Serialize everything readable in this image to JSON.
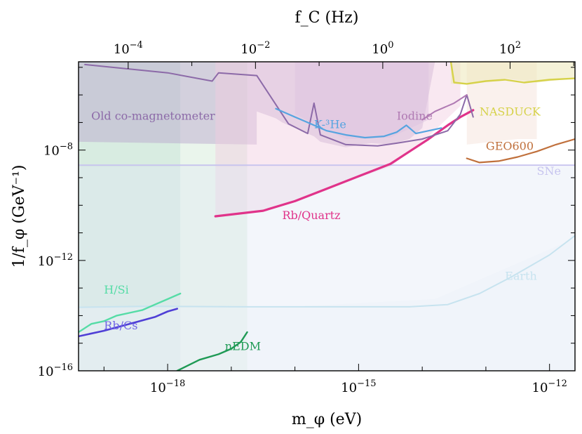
{
  "chart_data": {
    "type": "line",
    "title": "",
    "xlabel": "m_φ (eV)",
    "ylabel": "1/f_φ (GeV⁻¹)",
    "top_xlabel": "f_C (Hz)",
    "x_scale": "log10",
    "y_scale": "log10",
    "xlim_log10": [
      -19.4,
      -11.6
    ],
    "ylim_log10": [
      -16,
      -4.8
    ],
    "x_ticks": [
      {
        "value": -18,
        "label_base": "10",
        "label_exp": "−18"
      },
      {
        "value": -15,
        "label_base": "10",
        "label_exp": "−15"
      },
      {
        "value": -12,
        "label_base": "10",
        "label_exp": "−12"
      }
    ],
    "y_ticks": [
      {
        "value": -8,
        "label_base": "10",
        "label_exp": "−8"
      },
      {
        "value": -12,
        "label_base": "10",
        "label_exp": "−12"
      },
      {
        "value": -16,
        "label_base": "10",
        "label_exp": "−16"
      }
    ],
    "top_ticks": [
      {
        "value": -4,
        "label_base": "10",
        "label_exp": "−4"
      },
      {
        "value": -2,
        "label_base": "10",
        "label_exp": "−2"
      },
      {
        "value": 0,
        "label_base": "10",
        "label_exp": "0"
      },
      {
        "value": 2,
        "label_base": "10",
        "label_exp": "2"
      }
    ],
    "top_axis_offset_log10": 14.62,
    "regions": [
      {
        "name": "H/Si region",
        "color": "#b8dcc8",
        "opacity": 0.55,
        "x": [
          -19.4,
          -19.4,
          -17.8,
          -17.8
        ],
        "y": [
          -16,
          -4.8,
          -4.8,
          -16
        ]
      },
      {
        "name": "nEDM region",
        "color": "#d8ecdc",
        "opacity": 0.55,
        "x": [
          -17.8,
          -17.8,
          -16.75,
          -16.75
        ],
        "y": [
          -16,
          -4.8,
          -4.8,
          -16
        ]
      },
      {
        "name": "Old co-magnetometer region",
        "color": "#b9a3cc",
        "opacity": 0.45,
        "x": [
          -19.4,
          -19.4,
          -16.6,
          -16.6,
          -16.3,
          -16.2,
          -15.7,
          -15.6,
          -15.4,
          -15.2,
          -14.8,
          -14.5,
          -14.2,
          -14.0,
          -13.8
        ],
        "y": [
          -4.8,
          -7.7,
          -7.8,
          -6.6,
          -6.85,
          -7.0,
          -7.5,
          -7.7,
          -7.8,
          -7.9,
          -7.75,
          -7.8,
          -7.6,
          -7.2,
          -4.8
        ]
      },
      {
        "name": "K-3He region",
        "color": "#cbb8dd",
        "opacity": 0.45,
        "x": [
          -16.0,
          -16.0,
          -15.2,
          -14.5,
          -13.9,
          -13.9
        ],
        "y": [
          -4.8,
          -6.7,
          -7.6,
          -7.55,
          -6.9,
          -4.8
        ]
      },
      {
        "name": "Rb/Quartz region",
        "color": "#f1cde1",
        "opacity": 0.45,
        "x": [
          -17.25,
          -17.25,
          -16.5,
          -15.5,
          -14.5,
          -13.9,
          -13.4,
          -13.4
        ],
        "y": [
          -4.8,
          -10.4,
          -10.2,
          -9.4,
          -8.6,
          -7.5,
          -6.4,
          -4.8
        ]
      },
      {
        "name": "GEO600 region",
        "color": "#f4dfd7",
        "opacity": 0.45,
        "x": [
          -13.3,
          -13.3,
          -12.5,
          -12.2,
          -12.2
        ],
        "y": [
          -4.8,
          -7.8,
          -7.6,
          -7.6,
          -4.8
        ]
      },
      {
        "name": "NASDUCK region",
        "color": "#ece8b8",
        "opacity": 0.55,
        "x": [
          -13.55,
          -13.55,
          -13.3,
          -12.7,
          -12.2,
          -11.6,
          -11.6
        ],
        "y": [
          -4.8,
          -5.6,
          -5.6,
          -5.4,
          -5.55,
          -5.4,
          -4.8
        ]
      },
      {
        "name": "SNe region",
        "color": "#e2e8f6",
        "opacity": 0.4,
        "x": [
          -19.4,
          -19.4,
          -11.6,
          -11.6
        ],
        "y": [
          -16,
          -8.6,
          -8.6,
          -16
        ]
      },
      {
        "name": "Earth region",
        "color": "#eef2f8",
        "opacity": 0.45,
        "x": [
          -19.4,
          -19.4,
          -16.2,
          -13.8,
          -11.6,
          -11.6
        ],
        "y": [
          -16,
          -13.7,
          -13.7,
          -13.4,
          -11.2,
          -16
        ]
      }
    ],
    "series": [
      {
        "name": "SNe",
        "color": "#c7c4ef",
        "width": 2,
        "x": [
          -19.4,
          -11.6
        ],
        "y": [
          -8.55,
          -8.55
        ]
      },
      {
        "name": "Earth",
        "color": "#c7e3ef",
        "width": 2,
        "x": [
          -19.4,
          -18.3,
          -16.8,
          -15.2,
          -14.2,
          -13.6,
          -13.1,
          -12.6,
          -12.0,
          -11.6
        ],
        "y": [
          -13.7,
          -13.66,
          -13.68,
          -13.68,
          -13.68,
          -13.6,
          -13.2,
          -12.6,
          -11.8,
          -11.1
        ]
      },
      {
        "name": "H/Si",
        "color": "#55dca6",
        "width": 2.4,
        "x": [
          -19.4,
          -19.2,
          -19.0,
          -18.8,
          -18.6,
          -18.4,
          -18.2,
          -18.0,
          -17.8
        ],
        "y": [
          -14.6,
          -14.3,
          -14.2,
          -14.0,
          -13.9,
          -13.8,
          -13.6,
          -13.4,
          -13.2
        ]
      },
      {
        "name": "Rb/Cs",
        "color": "#4f3fd6",
        "width": 2.6,
        "x": [
          -19.4,
          -19.0,
          -18.6,
          -18.2,
          -18.0,
          -17.85
        ],
        "y": [
          -14.75,
          -14.55,
          -14.3,
          -14.05,
          -13.85,
          -13.75
        ]
      },
      {
        "name": "nEDM",
        "color": "#1f9a55",
        "width": 2.4,
        "x": [
          -17.85,
          -17.5,
          -17.2,
          -17.0,
          -16.85,
          -16.75
        ],
        "y": [
          -16.0,
          -15.6,
          -15.4,
          -15.2,
          -14.95,
          -14.6
        ]
      },
      {
        "name": "Rb/Quartz",
        "color": "#e0338a",
        "width": 3.2,
        "x": [
          -17.25,
          -16.5,
          -16.0,
          -15.5,
          -15.0,
          -14.5,
          -14.2,
          -13.9,
          -13.6,
          -13.4,
          -13.2
        ],
        "y": [
          -10.4,
          -10.2,
          -9.85,
          -9.4,
          -8.95,
          -8.5,
          -8.05,
          -7.6,
          -7.1,
          -6.8,
          -6.55
        ]
      },
      {
        "name": "Old co-magnetometer",
        "color": "#8c6aa8",
        "width": 2,
        "x": [
          -19.3,
          -18.0,
          -17.3,
          -17.2,
          -16.6,
          -16.1,
          -15.8,
          -15.7,
          -15.6,
          -15.2,
          -14.7,
          -14.4,
          -14.0,
          -13.6,
          -13.4,
          -13.3,
          -13.2
        ],
        "y": [
          -4.9,
          -5.2,
          -5.5,
          -5.2,
          -5.3,
          -7.05,
          -7.4,
          -6.3,
          -7.45,
          -7.8,
          -7.85,
          -7.75,
          -7.6,
          -7.3,
          -6.7,
          -6.0,
          -6.8
        ]
      },
      {
        "name": "K-3He",
        "color": "#56a4e0",
        "width": 2.2,
        "x": [
          -16.3,
          -16.0,
          -15.8,
          -15.5,
          -15.2,
          -14.9,
          -14.6,
          -14.4,
          -14.25,
          -14.1,
          -13.9,
          -13.7
        ],
        "y": [
          -6.5,
          -6.8,
          -7.0,
          -7.3,
          -7.45,
          -7.55,
          -7.5,
          -7.35,
          -7.1,
          -7.4,
          -7.3,
          -7.2
        ]
      },
      {
        "name": "Iodine",
        "color": "#b07ab3",
        "width": 2,
        "x": [
          -14.0,
          -13.8,
          -13.5,
          -13.3
        ],
        "y": [
          -6.9,
          -6.6,
          -6.3,
          -6.0
        ]
      },
      {
        "name": "NASDUCK",
        "color": "#d6d24a",
        "width": 2.4,
        "x": [
          -13.55,
          -13.5,
          -13.3,
          -13.0,
          -12.7,
          -12.4,
          -12.2,
          -12.0,
          -11.6
        ],
        "y": [
          -4.8,
          -5.55,
          -5.6,
          -5.5,
          -5.45,
          -5.55,
          -5.5,
          -5.45,
          -5.4
        ]
      },
      {
        "name": "GEO600",
        "color": "#c0703c",
        "width": 2.2,
        "x": [
          -13.3,
          -13.1,
          -12.8,
          -12.5,
          -12.2,
          -11.9,
          -11.6
        ],
        "y": [
          -8.3,
          -8.45,
          -8.4,
          -8.25,
          -8.05,
          -7.8,
          -7.6
        ]
      }
    ],
    "annotations": [
      {
        "text": "Old co-magnetometer",
        "x": -19.2,
        "y": -6.9,
        "color": "#8c6aa8"
      },
      {
        "text": "K-³He",
        "x": -15.7,
        "y": -7.2,
        "color": "#56a4e0"
      },
      {
        "text": "Iodine",
        "x": -14.4,
        "y": -6.9,
        "color": "#b07ab3"
      },
      {
        "text": "NASDUCK",
        "x": -13.1,
        "y": -6.75,
        "color": "#d6d24a"
      },
      {
        "text": "GEO600",
        "x": -13.0,
        "y": -8.0,
        "color": "#c0703c"
      },
      {
        "text": "SNe",
        "x": -12.2,
        "y": -8.9,
        "color": "#c7c4ef"
      },
      {
        "text": "Rb/Quartz",
        "x": -16.2,
        "y": -10.5,
        "color": "#e0338a"
      },
      {
        "text": "Earth",
        "x": -12.7,
        "y": -12.7,
        "color": "#c7e3ef"
      },
      {
        "text": "H/Si",
        "x": -19.0,
        "y": -13.2,
        "color": "#55dca6"
      },
      {
        "text": "Rb/Cs",
        "x": -19.0,
        "y": -14.5,
        "color": "#6f63e6"
      },
      {
        "text": "nEDM",
        "x": -17.1,
        "y": -15.25,
        "color": "#1f9a55"
      }
    ]
  }
}
